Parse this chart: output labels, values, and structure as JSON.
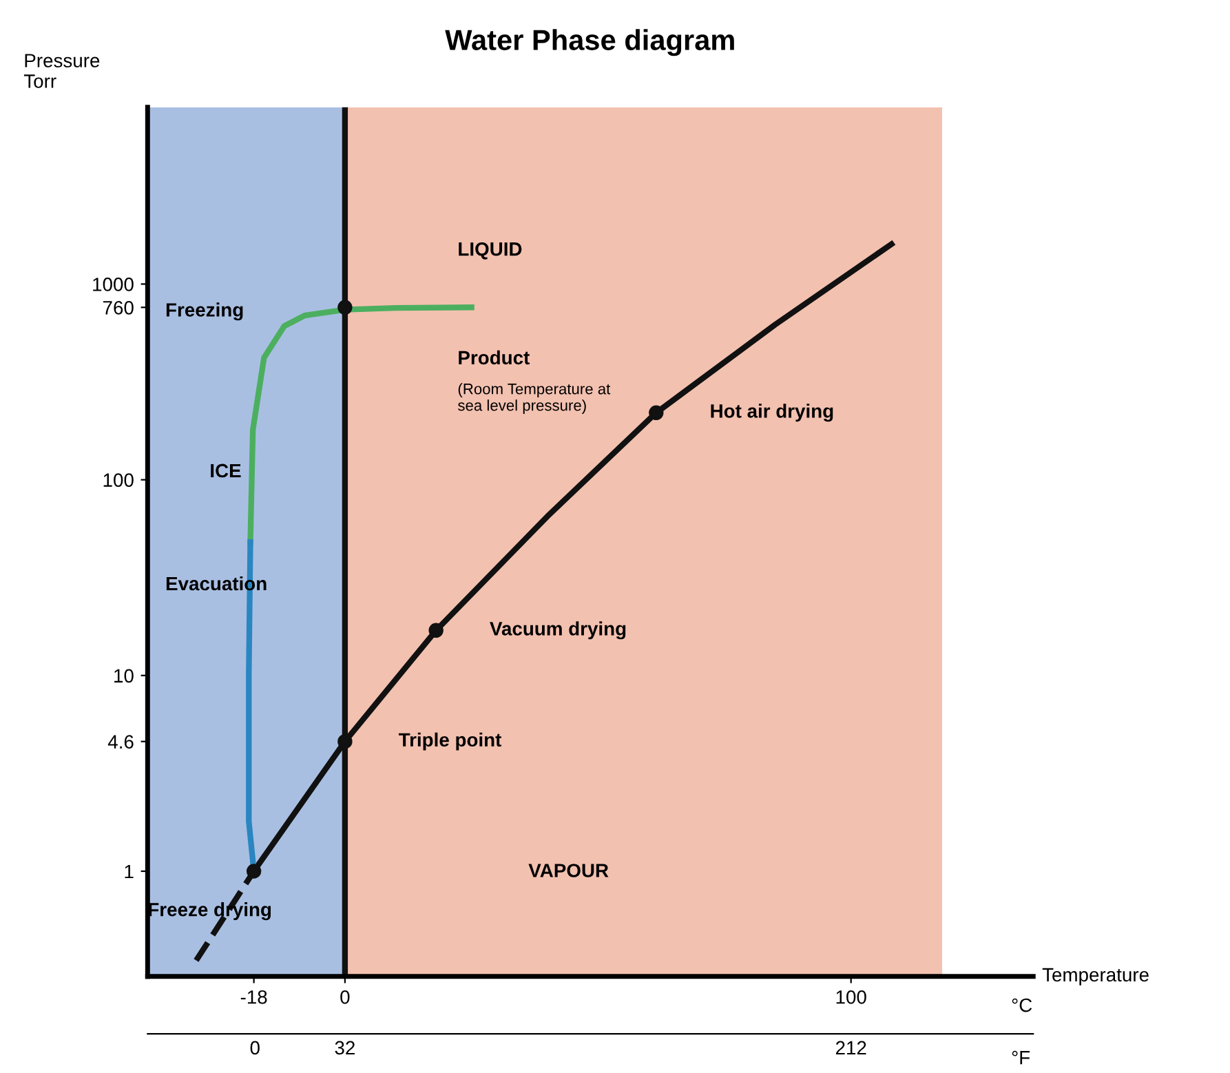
{
  "chart_data": {
    "type": "line",
    "title": "Water Phase diagram",
    "ylabel": "Pressure\nTorr",
    "xlabel": "Temperature",
    "x2label": "°F",
    "log": "y",
    "xlim": [
      -39,
      136
    ],
    "xticks": [
      -18,
      0,
      100
    ],
    "x2lim": [
      -38.2,
      276.8
    ],
    "x2ticks": [
      0,
      32,
      212
    ],
    "ylim": [
      0.29,
      8000
    ],
    "yticks": [
      1,
      4.6,
      10,
      100,
      760,
      1000
    ],
    "series": [
      {
        "color": "#111111",
        "x": [
          -18,
          0,
          18,
          40,
          61.5,
          85,
          108
        ],
        "values": [
          1,
          4.6,
          17,
          65,
          220,
          620,
          1600
        ],
        "line_style": "solid"
      },
      {
        "color": "#111111",
        "x": [
          -29.4,
          -18
        ],
        "values": [
          0.35,
          1
        ],
        "line_style": "dashed"
      },
      {
        "color": "#4caf60",
        "x": [
          25,
          10,
          0,
          -8,
          -12,
          -16,
          -18.2,
          -18.7
        ],
        "values": [
          760,
          755,
          740,
          690,
          610,
          420,
          180,
          48
        ],
        "line_style": "solid"
      },
      {
        "color": "#2a86c0",
        "x": [
          -18.7,
          -19,
          -19,
          -18
        ],
        "values": [
          48,
          10,
          1.8,
          1
        ],
        "line_style": "solid"
      },
      {
        "type": "scatter",
        "color": "#111111",
        "marker": "circle",
        "x": [
          -18,
          0,
          18,
          61.5,
          0
        ],
        "values": [
          1,
          4.6,
          17,
          220,
          760
        ]
      }
    ],
    "ref_lines": [
      {
        "axis": "x",
        "value": 0,
        "color": "#111111"
      }
    ],
    "bands": [
      {
        "axis": "x",
        "from": -39,
        "to": 0,
        "color": "#a9bfe2"
      },
      {
        "axis": "x",
        "from": 0,
        "to": 118,
        "color": "#f3c1b0"
      }
    ],
    "annotations": [
      "LIQUID",
      "Freezing",
      "Product",
      "(Room Temperature at\nsea level pressure)",
      "ICE",
      "Evacuation",
      {
        "text": "Hot air drying",
        "x": 61.5,
        "y": 220
      },
      {
        "text": "Vacuum drying",
        "x": 18,
        "y": 17
      },
      {
        "text": "Triple point",
        "x": 0,
        "y": 4.6
      },
      "VAPOUR",
      "Freeze drying",
      "°C"
    ]
  }
}
